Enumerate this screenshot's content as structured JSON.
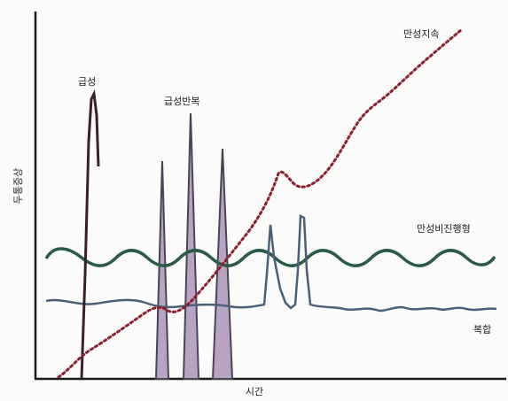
{
  "xlabel": "시간",
  "ylabel": "두통증상",
  "labels": {
    "acute": "급성",
    "acute_recurrent": "급성반복",
    "chronic_continuous": "만성지속",
    "chronic_nonprogressive": "만성비진행형",
    "mixed": "복합"
  },
  "colors": {
    "axis": "#1a1a1a",
    "acute": "#3a1f2b",
    "acute_recurrent_fill": "#b9a3c2",
    "acute_recurrent_stroke": "#4a4458",
    "chronic_continuous": "#8e1f2e",
    "chronic_nonprogressive": "#2a5a4a",
    "mixed": "#4a6078"
  }
}
